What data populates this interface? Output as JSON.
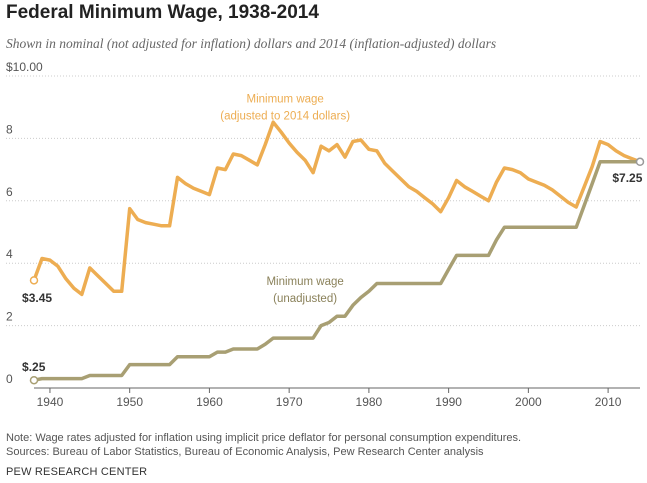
{
  "title": "Federal Minimum Wage, 1938-2014",
  "subtitle": "Shown in nominal (not adjusted for inflation) dollars and 2014 (inflation-adjusted) dollars",
  "note": "Note: Wage rates adjusted for inflation using implicit price deflator for personal consumption expenditures.",
  "sources": "Sources: Bureau of Labor Statistics, Bureau of Economic Analysis, Pew Research Center analysis",
  "brand": "PEW RESEARCH CENTER",
  "colors": {
    "adjusted": "#EDAD52",
    "nominal": "#A89F73",
    "grid": "#CCCCCC",
    "axis": "#666666"
  },
  "chart_data": {
    "type": "line",
    "xlim": [
      1938,
      2014
    ],
    "ylim": [
      0,
      10
    ],
    "x_ticks": [
      1940,
      1950,
      1960,
      1970,
      1980,
      1990,
      2000,
      2010
    ],
    "x_tick_labels": [
      "1940",
      "1950",
      "1960",
      "1970",
      "1980",
      "1990",
      "2000",
      "2010"
    ],
    "y_ticks": [
      0,
      2,
      4,
      6,
      8,
      10
    ],
    "y_tick_labels": [
      "0",
      "2",
      "4",
      "6",
      "8",
      "$10.00"
    ],
    "grid": "horizontal-dotted",
    "series": [
      {
        "key": "adjusted",
        "label_line1": "Minimum wage",
        "label_line2": "(adjusted to 2014 dollars)",
        "start_label": "$3.45",
        "points": [
          [
            1938,
            3.45
          ],
          [
            1939,
            4.15
          ],
          [
            1940,
            4.1
          ],
          [
            1941,
            3.9
          ],
          [
            1942,
            3.5
          ],
          [
            1943,
            3.2
          ],
          [
            1944,
            3.0
          ],
          [
            1945,
            3.85
          ],
          [
            1946,
            3.6
          ],
          [
            1947,
            3.35
          ],
          [
            1948,
            3.1
          ],
          [
            1949,
            3.1
          ],
          [
            1950,
            5.75
          ],
          [
            1951,
            5.4
          ],
          [
            1952,
            5.3
          ],
          [
            1953,
            5.25
          ],
          [
            1954,
            5.2
          ],
          [
            1955,
            5.2
          ],
          [
            1956,
            6.75
          ],
          [
            1957,
            6.55
          ],
          [
            1958,
            6.4
          ],
          [
            1959,
            6.3
          ],
          [
            1960,
            6.2
          ],
          [
            1961,
            7.05
          ],
          [
            1962,
            7.0
          ],
          [
            1963,
            7.5
          ],
          [
            1964,
            7.45
          ],
          [
            1965,
            7.3
          ],
          [
            1966,
            7.15
          ],
          [
            1967,
            7.8
          ],
          [
            1968,
            8.52
          ],
          [
            1969,
            8.2
          ],
          [
            1970,
            7.85
          ],
          [
            1971,
            7.55
          ],
          [
            1972,
            7.3
          ],
          [
            1973,
            6.9
          ],
          [
            1974,
            7.75
          ],
          [
            1975,
            7.6
          ],
          [
            1976,
            7.8
          ],
          [
            1977,
            7.4
          ],
          [
            1978,
            7.9
          ],
          [
            1979,
            7.95
          ],
          [
            1980,
            7.65
          ],
          [
            1981,
            7.6
          ],
          [
            1982,
            7.2
          ],
          [
            1983,
            6.95
          ],
          [
            1984,
            6.7
          ],
          [
            1985,
            6.45
          ],
          [
            1986,
            6.3
          ],
          [
            1987,
            6.1
          ],
          [
            1988,
            5.9
          ],
          [
            1989,
            5.65
          ],
          [
            1990,
            6.1
          ],
          [
            1991,
            6.65
          ],
          [
            1992,
            6.45
          ],
          [
            1993,
            6.3
          ],
          [
            1994,
            6.15
          ],
          [
            1995,
            6.0
          ],
          [
            1996,
            6.6
          ],
          [
            1997,
            7.05
          ],
          [
            1998,
            7.0
          ],
          [
            1999,
            6.9
          ],
          [
            2000,
            6.7
          ],
          [
            2001,
            6.6
          ],
          [
            2002,
            6.5
          ],
          [
            2003,
            6.35
          ],
          [
            2004,
            6.15
          ],
          [
            2005,
            5.95
          ],
          [
            2006,
            5.8
          ],
          [
            2007,
            6.45
          ],
          [
            2008,
            7.1
          ],
          [
            2009,
            7.9
          ],
          [
            2010,
            7.8
          ],
          [
            2011,
            7.6
          ],
          [
            2012,
            7.45
          ],
          [
            2013,
            7.35
          ],
          [
            2014,
            7.25
          ]
        ]
      },
      {
        "key": "nominal",
        "label_line1": "Minimum wage",
        "label_line2": "(unadjusted)",
        "start_label": "$.25",
        "end_label": "$7.25",
        "points": [
          [
            1938,
            0.25
          ],
          [
            1939,
            0.3
          ],
          [
            1944,
            0.3
          ],
          [
            1945,
            0.4
          ],
          [
            1949,
            0.4
          ],
          [
            1950,
            0.75
          ],
          [
            1955,
            0.75
          ],
          [
            1956,
            1.0
          ],
          [
            1960,
            1.0
          ],
          [
            1961,
            1.15
          ],
          [
            1962,
            1.15
          ],
          [
            1963,
            1.25
          ],
          [
            1966,
            1.25
          ],
          [
            1967,
            1.4
          ],
          [
            1968,
            1.6
          ],
          [
            1973,
            1.6
          ],
          [
            1974,
            2.0
          ],
          [
            1975,
            2.1
          ],
          [
            1976,
            2.3
          ],
          [
            1977,
            2.3
          ],
          [
            1978,
            2.65
          ],
          [
            1979,
            2.9
          ],
          [
            1980,
            3.1
          ],
          [
            1981,
            3.35
          ],
          [
            1989,
            3.35
          ],
          [
            1990,
            3.8
          ],
          [
            1991,
            4.25
          ],
          [
            1995,
            4.25
          ],
          [
            1996,
            4.75
          ],
          [
            1997,
            5.15
          ],
          [
            2006,
            5.15
          ],
          [
            2007,
            5.85
          ],
          [
            2008,
            6.55
          ],
          [
            2009,
            7.25
          ],
          [
            2014,
            7.25
          ]
        ]
      }
    ]
  }
}
